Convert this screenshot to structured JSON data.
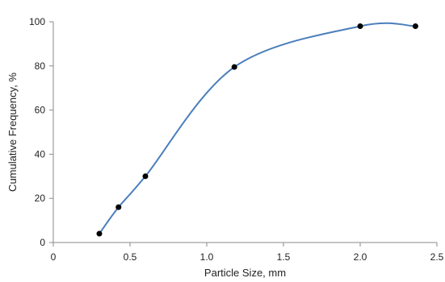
{
  "chart_data": {
    "type": "scatter",
    "title": "",
    "xlabel": "Particle Size, mm",
    "ylabel": "Cumulative Frequency, %",
    "xlim": [
      0,
      2.5
    ],
    "ylim": [
      0,
      100
    ],
    "x_ticks": [
      0,
      0.5,
      1.0,
      1.5,
      2.0,
      2.5
    ],
    "x_tick_labels": [
      "0",
      "0.5",
      "1.0",
      "1.5",
      "2.0",
      "2.5"
    ],
    "y_ticks": [
      0,
      20,
      40,
      60,
      80,
      100
    ],
    "y_tick_labels": [
      "0",
      "20",
      "40",
      "60",
      "80",
      "100"
    ],
    "grid": false,
    "legend": "none",
    "line_style": "smoothed",
    "series": [
      {
        "x": [
          0.3,
          0.425,
          0.6,
          1.18,
          2.0,
          2.36
        ],
        "y": [
          4,
          16,
          30,
          79.5,
          98,
          98
        ]
      }
    ],
    "colors": {
      "line": "#4a7ebb",
      "marker": "#000000",
      "axis": "#8a8a8a"
    }
  }
}
